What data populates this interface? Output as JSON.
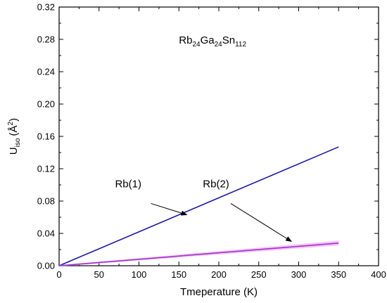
{
  "chart_data": {
    "type": "line",
    "title": "",
    "xlabel": "Tmeperature (K)",
    "ylabel_main": "U",
    "ylabel_sub": "iso",
    "ylabel_unit_open": "(Å",
    "ylabel_unit_sup": "2",
    "ylabel_unit_close": ")",
    "xlim": [
      0,
      400
    ],
    "ylim": [
      0,
      0.32
    ],
    "xticks": [
      "0",
      "50",
      "100",
      "150",
      "200",
      "250",
      "300",
      "350",
      "400"
    ],
    "yticks": [
      "0.00",
      "0.04",
      "0.08",
      "0.12",
      "0.16",
      "0.20",
      "0.24",
      "0.28",
      "0.32"
    ],
    "grid": false,
    "series": [
      {
        "name": "Rb(1)",
        "color": "#1a1aaa",
        "x": [
          0,
          350
        ],
        "y": [
          0,
          0.147
        ]
      },
      {
        "name": "Rb(2)",
        "color": "#a030d0",
        "band_color": "#f2b8f2",
        "x": [
          0,
          350
        ],
        "y": [
          0,
          0.028
        ]
      }
    ],
    "annotations": [
      {
        "text": "Rb(1)",
        "text_at": [
          70,
          0.097
        ],
        "arrow_from": [
          115,
          0.077
        ],
        "arrow_to": [
          160,
          0.063
        ]
      },
      {
        "text": "Rb(2)",
        "text_at": [
          180,
          0.097
        ],
        "arrow_from": [
          215,
          0.077
        ],
        "arrow_to": [
          291,
          0.03
        ]
      }
    ],
    "formula": {
      "parts": [
        {
          "t": "Rb",
          "sub": false
        },
        {
          "t": "24",
          "sub": true
        },
        {
          "t": "Ga",
          "sub": false
        },
        {
          "t": "24",
          "sub": true
        },
        {
          "t": "Sn",
          "sub": false
        },
        {
          "t": "112",
          "sub": true
        }
      ],
      "at": [
        150,
        0.275
      ]
    }
  }
}
